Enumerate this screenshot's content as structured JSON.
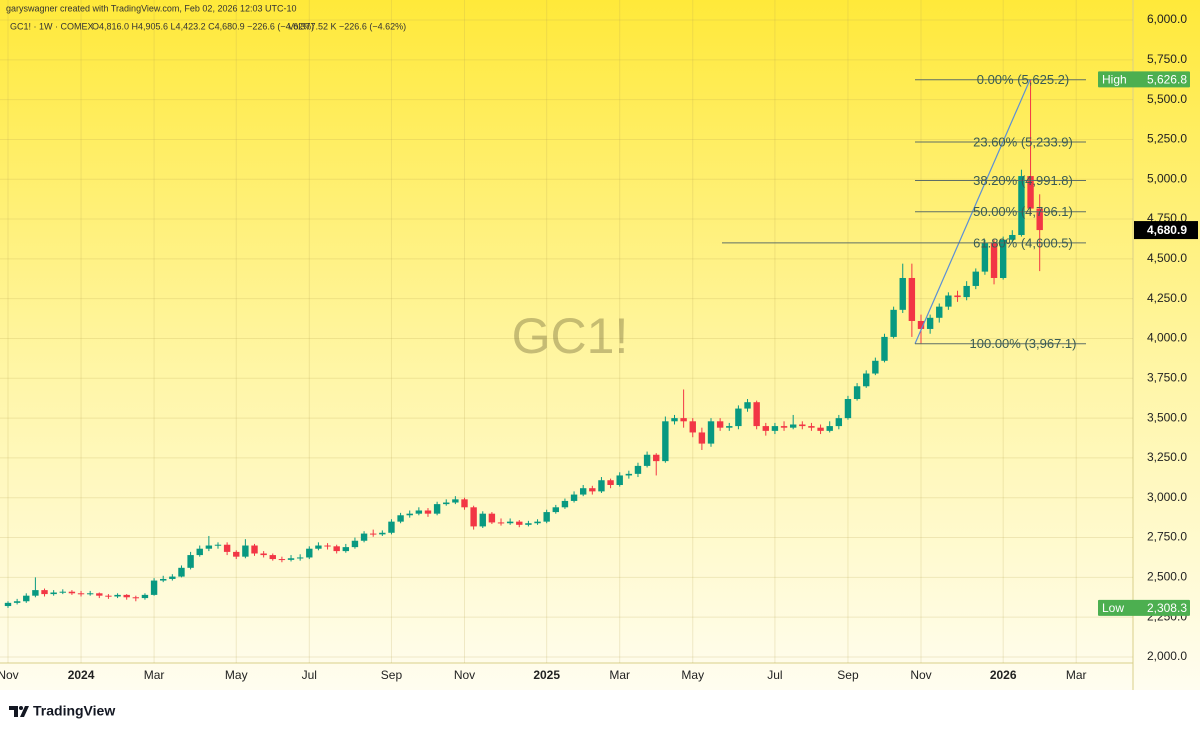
{
  "header": {
    "attribution": "garyswagner created with TradingView.com, Feb 02, 2026 12:03 UTC-10",
    "symbol": "GC1! · 1W · COMEX",
    "ohlc": "O4,816.0 H4,905.6 L4,423.2 C4,680.9 −226.6 (−4.62%)",
    "volume": "Vol377.52 K −226.6 (−4.62%)"
  },
  "watermark": "GC1!",
  "brand": "TradingView",
  "chart_data": {
    "type": "candlestick",
    "categories": [
      "Nov",
      null,
      null,
      null,
      null,
      null,
      null,
      null,
      "2024",
      null,
      null,
      null,
      null,
      null,
      null,
      null,
      "Mar",
      null,
      null,
      null,
      null,
      null,
      null,
      null,
      null,
      "May",
      null,
      null,
      null,
      null,
      null,
      null,
      null,
      "Jul",
      null,
      null,
      null,
      null,
      null,
      null,
      null,
      null,
      "Sep",
      null,
      null,
      null,
      null,
      null,
      null,
      null,
      "Nov",
      null,
      null,
      null,
      null,
      null,
      null,
      null,
      null,
      "2025",
      null,
      null,
      null,
      null,
      null,
      null,
      null,
      "Mar",
      null,
      null,
      null,
      null,
      null,
      null,
      null,
      "May",
      null,
      null,
      null,
      null,
      null,
      null,
      null,
      null,
      "Jul",
      null,
      null,
      null,
      null,
      null,
      null,
      null,
      "Sep",
      null,
      null,
      null,
      null,
      null,
      null,
      null,
      "Nov",
      null,
      null,
      null,
      null,
      null,
      null,
      null,
      null,
      "2026",
      null,
      null,
      null,
      null,
      null,
      null,
      null,
      "Mar"
    ],
    "open": [
      2320,
      2340,
      2350,
      2385,
      2420,
      2395,
      2405,
      2410,
      2400,
      2395,
      2400,
      2385,
      2380,
      2390,
      2375,
      2370,
      2390,
      2480,
      2490,
      2505,
      2560,
      2640,
      2680,
      2700,
      2705,
      2660,
      2630,
      2700,
      2650,
      2640,
      2615,
      2610,
      2620,
      2625,
      2680,
      2700,
      2695,
      2665,
      2690,
      2730,
      2775,
      2770,
      2780,
      2850,
      2890,
      2900,
      2920,
      2900,
      2960,
      2970,
      2990,
      2940,
      2820,
      2900,
      2845,
      2840,
      2850,
      2830,
      2840,
      2850,
      2910,
      2940,
      2980,
      3020,
      3060,
      3040,
      3110,
      3080,
      3140,
      3150,
      3200,
      3270,
      3230,
      3480,
      3500,
      3480,
      3410,
      3340,
      3480,
      3440,
      3450,
      3560,
      3600,
      3450,
      3420,
      3450,
      3440,
      3460,
      3450,
      3440,
      3420,
      3450,
      3500,
      3620,
      3700,
      3780,
      3860,
      4010,
      4180,
      4380,
      4110,
      4060,
      4130,
      4200,
      4270,
      4260,
      4330,
      4420,
      4600,
      4380,
      4620,
      4650,
      5020,
      4816.0,
      null,
      null,
      null,
      null
    ],
    "high": [
      2350,
      2365,
      2400,
      2500,
      2430,
      2420,
      2425,
      2420,
      2415,
      2415,
      2405,
      2395,
      2400,
      2395,
      2385,
      2400,
      2495,
      2510,
      2520,
      2575,
      2660,
      2700,
      2760,
      2720,
      2720,
      2670,
      2740,
      2710,
      2665,
      2650,
      2630,
      2640,
      2645,
      2695,
      2720,
      2715,
      2705,
      2710,
      2750,
      2790,
      2800,
      2795,
      2865,
      2905,
      2920,
      2940,
      2935,
      2975,
      2990,
      3010,
      3000,
      2950,
      2915,
      2910,
      2870,
      2870,
      2860,
      2855,
      2865,
      2925,
      2955,
      2995,
      3040,
      3080,
      3075,
      3130,
      3120,
      3160,
      3170,
      3220,
      3290,
      3280,
      3510,
      3520,
      3680,
      3500,
      3440,
      3500,
      3500,
      3470,
      3580,
      3620,
      3610,
      3470,
      3470,
      3480,
      3520,
      3480,
      3470,
      3460,
      3480,
      3520,
      3640,
      3720,
      3800,
      3880,
      4030,
      4200,
      4470,
      4470,
      4150,
      4150,
      4220,
      4290,
      4300,
      4360,
      4440,
      4620,
      4620,
      4640,
      4680,
      5060,
      5626.8,
      4905.6,
      null,
      null,
      null,
      null
    ],
    "low": [
      2308.3,
      2330,
      2340,
      2375,
      2380,
      2385,
      2395,
      2390,
      2380,
      2385,
      2370,
      2365,
      2370,
      2360,
      2350,
      2360,
      2385,
      2470,
      2480,
      2500,
      2550,
      2630,
      2665,
      2680,
      2640,
      2615,
      2620,
      2635,
      2625,
      2605,
      2595,
      2600,
      2605,
      2615,
      2670,
      2675,
      2650,
      2655,
      2680,
      2720,
      2755,
      2760,
      2770,
      2840,
      2875,
      2890,
      2880,
      2890,
      2950,
      2960,
      2925,
      2800,
      2810,
      2835,
      2825,
      2830,
      2815,
      2820,
      2830,
      2840,
      2900,
      2930,
      2970,
      3010,
      3020,
      3030,
      3060,
      3070,
      3120,
      3130,
      3190,
      3140,
      3220,
      3460,
      3440,
      3380,
      3300,
      3320,
      3420,
      3420,
      3430,
      3540,
      3430,
      3390,
      3400,
      3420,
      3430,
      3430,
      3420,
      3400,
      3410,
      3430,
      3490,
      3610,
      3690,
      3770,
      3850,
      4000,
      4160,
      4010,
      3967.1,
      4030,
      4100,
      4180,
      4230,
      4240,
      4310,
      4400,
      4340,
      4370,
      4600,
      4640,
      4780,
      4423.2,
      null,
      null,
      null,
      null
    ],
    "close": [
      2340,
      2350,
      2385,
      2420,
      2395,
      2405,
      2410,
      2400,
      2395,
      2400,
      2385,
      2380,
      2390,
      2375,
      2370,
      2390,
      2480,
      2490,
      2505,
      2560,
      2640,
      2680,
      2700,
      2705,
      2660,
      2630,
      2700,
      2650,
      2640,
      2615,
      2610,
      2620,
      2625,
      2680,
      2700,
      2695,
      2665,
      2690,
      2730,
      2775,
      2770,
      2780,
      2850,
      2890,
      2900,
      2920,
      2900,
      2960,
      2970,
      2990,
      2940,
      2820,
      2900,
      2845,
      2840,
      2850,
      2830,
      2840,
      2850,
      2910,
      2940,
      2980,
      3020,
      3060,
      3040,
      3110,
      3080,
      3140,
      3150,
      3200,
      3270,
      3230,
      3480,
      3500,
      3480,
      3410,
      3340,
      3480,
      3440,
      3450,
      3560,
      3600,
      3450,
      3420,
      3450,
      3440,
      3460,
      3450,
      3440,
      3420,
      3450,
      3500,
      3620,
      3700,
      3780,
      3860,
      4010,
      4180,
      4380,
      4110,
      4060,
      4130,
      4200,
      4270,
      4260,
      4330,
      4420,
      4600,
      4380,
      4620,
      4650,
      5020,
      4816,
      4680.9,
      null,
      null,
      null,
      null
    ],
    "up_color": "#089981",
    "down_color": "#f23645",
    "ylim": [
      1962.3,
      6125.6
    ],
    "yticks": [
      {
        "value": 2000,
        "label": "2,000.0"
      },
      {
        "value": 2250,
        "label": "2,250.0"
      },
      {
        "value": 2500,
        "label": "2,500.0"
      },
      {
        "value": 2750,
        "label": "2,750.0"
      },
      {
        "value": 3000,
        "label": "3,000.0"
      },
      {
        "value": 3250,
        "label": "3,250.0"
      },
      {
        "value": 3500,
        "label": "3,500.0"
      },
      {
        "value": 3750,
        "label": "3,750.0"
      },
      {
        "value": 4000,
        "label": "4,000.0"
      },
      {
        "value": 4250,
        "label": "4,250.0"
      },
      {
        "value": 4500,
        "label": "4,500.0"
      },
      {
        "value": 4750,
        "label": "4,750.0"
      },
      {
        "value": 5000,
        "label": "5,000.0"
      },
      {
        "value": 5250,
        "label": "5,250.0"
      },
      {
        "value": 5500,
        "label": "5,500.0"
      },
      {
        "value": 5750,
        "label": "5,750.0"
      },
      {
        "value": 6000,
        "label": "6,000.0"
      }
    ],
    "grid": true,
    "fib_levels": [
      {
        "value": 5625.2,
        "label": "0.00% (5,625.2)"
      },
      {
        "value": 5233.9,
        "label": "23.60% (5,233.9)"
      },
      {
        "value": 4991.8,
        "label": "38.20% (4,991.8)"
      },
      {
        "value": 4796.1,
        "label": "50.00% (4,796.1)"
      },
      {
        "value": 4600.5,
        "label": "61.80% (4,600.5)"
      },
      {
        "value": 3967.1,
        "label": "100.00% (3,967.1)"
      }
    ],
    "markers": [
      {
        "label": "High",
        "value": 5626.8,
        "value_label": "5,626.8",
        "color": "#4caf50"
      },
      {
        "label": "Low",
        "value": 2308.3,
        "value_label": "2,308.3",
        "color": "#4caf50"
      }
    ],
    "last_price": {
      "value": 4680.9,
      "label": "4,680.9",
      "color": "#000000"
    }
  }
}
